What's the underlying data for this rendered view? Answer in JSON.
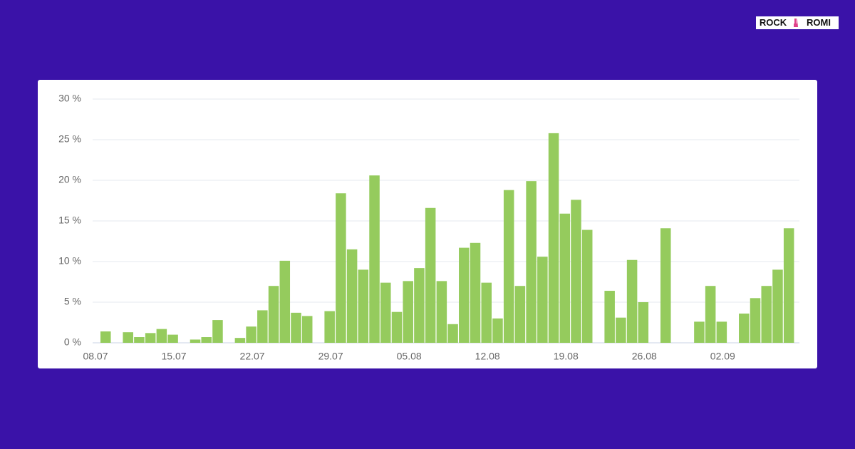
{
  "brand": {
    "left": "ROCK",
    "right": "ROMI"
  },
  "chart_data": {
    "type": "bar",
    "color": "#95cb5d",
    "grid": true,
    "ylim": [
      0,
      30
    ],
    "yticks": [
      {
        "value": 0,
        "label": "0 %"
      },
      {
        "value": 5,
        "label": "5 %"
      },
      {
        "value": 10,
        "label": "10 %"
      },
      {
        "value": 15,
        "label": "15 %"
      },
      {
        "value": 20,
        "label": "20 %"
      },
      {
        "value": 25,
        "label": "25 %"
      },
      {
        "value": 30,
        "label": "30 %"
      }
    ],
    "categories": [
      "08.07",
      null,
      null,
      null,
      null,
      null,
      null,
      "15.07",
      null,
      null,
      null,
      null,
      null,
      null,
      "22.07",
      null,
      null,
      null,
      null,
      null,
      null,
      "29.07",
      null,
      null,
      null,
      null,
      null,
      null,
      "05.08",
      null,
      null,
      null,
      null,
      null,
      null,
      "12.08",
      null,
      null,
      null,
      null,
      null,
      null,
      "19.08",
      null,
      null,
      null,
      null,
      null,
      null,
      "26.08",
      null,
      null,
      null,
      null,
      null,
      null,
      "02.09",
      null,
      null,
      null,
      null,
      null
    ],
    "values": [
      1.4,
      null,
      1.3,
      0.7,
      1.2,
      1.7,
      1.0,
      null,
      0.4,
      0.7,
      2.8,
      null,
      0.6,
      2.0,
      4.0,
      7.0,
      10.1,
      3.7,
      3.3,
      null,
      3.9,
      18.4,
      11.5,
      9.0,
      20.6,
      7.4,
      3.8,
      7.6,
      9.2,
      16.6,
      7.6,
      2.3,
      11.7,
      12.3,
      7.4,
      3.0,
      18.8,
      7.0,
      19.9,
      10.6,
      25.8,
      15.9,
      17.6,
      13.9,
      null,
      6.4,
      3.1,
      10.2,
      5.0,
      null,
      14.1,
      null,
      null,
      2.6,
      7.0,
      2.6,
      null,
      3.6,
      5.5,
      7.0,
      9.0,
      14.1
    ]
  }
}
